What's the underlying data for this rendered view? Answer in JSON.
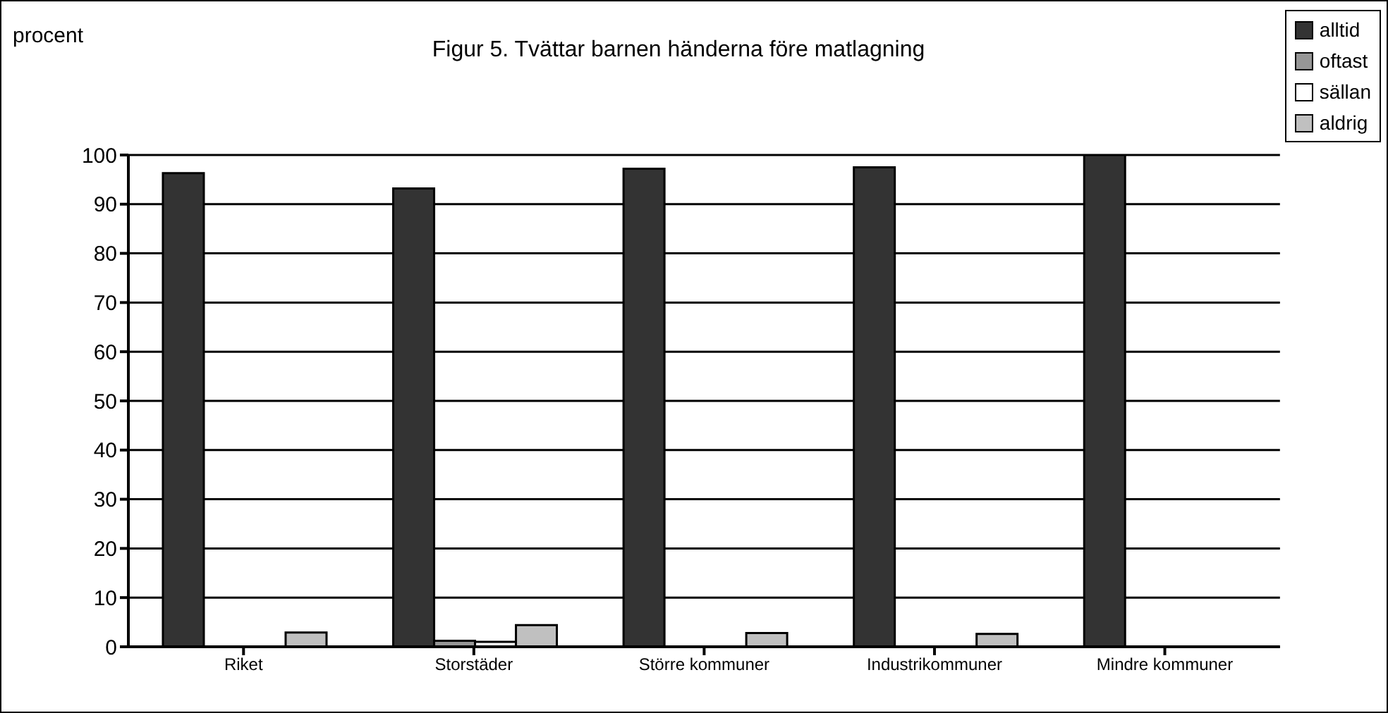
{
  "chart_data": {
    "type": "bar",
    "title": "Figur 5. Tvättar barnen händerna före matlagning",
    "ylabel": "procent",
    "categories": [
      "Riket",
      "Storstäder",
      "Större kommuner",
      "Industrikommuner",
      "Mindre kommuner"
    ],
    "series": [
      {
        "name": "alltid",
        "color": "#333333",
        "values": [
          96.3,
          93.2,
          97.2,
          97.5,
          100
        ]
      },
      {
        "name": "oftast",
        "color": "#969696",
        "values": [
          null,
          1.2,
          0,
          0,
          0
        ]
      },
      {
        "name": "sällan",
        "color": "#ffffff",
        "values": [
          null,
          1.0,
          null,
          0,
          0
        ]
      },
      {
        "name": "aldrig",
        "color": "#c0c0c0",
        "values": [
          2.9,
          4.4,
          2.8,
          2.6,
          0
        ]
      }
    ],
    "ylim": [
      0,
      100
    ],
    "yticks": [
      0,
      10,
      20,
      30,
      40,
      50,
      60,
      70,
      80,
      90,
      100
    ],
    "grid": "y",
    "legend": "top right"
  }
}
